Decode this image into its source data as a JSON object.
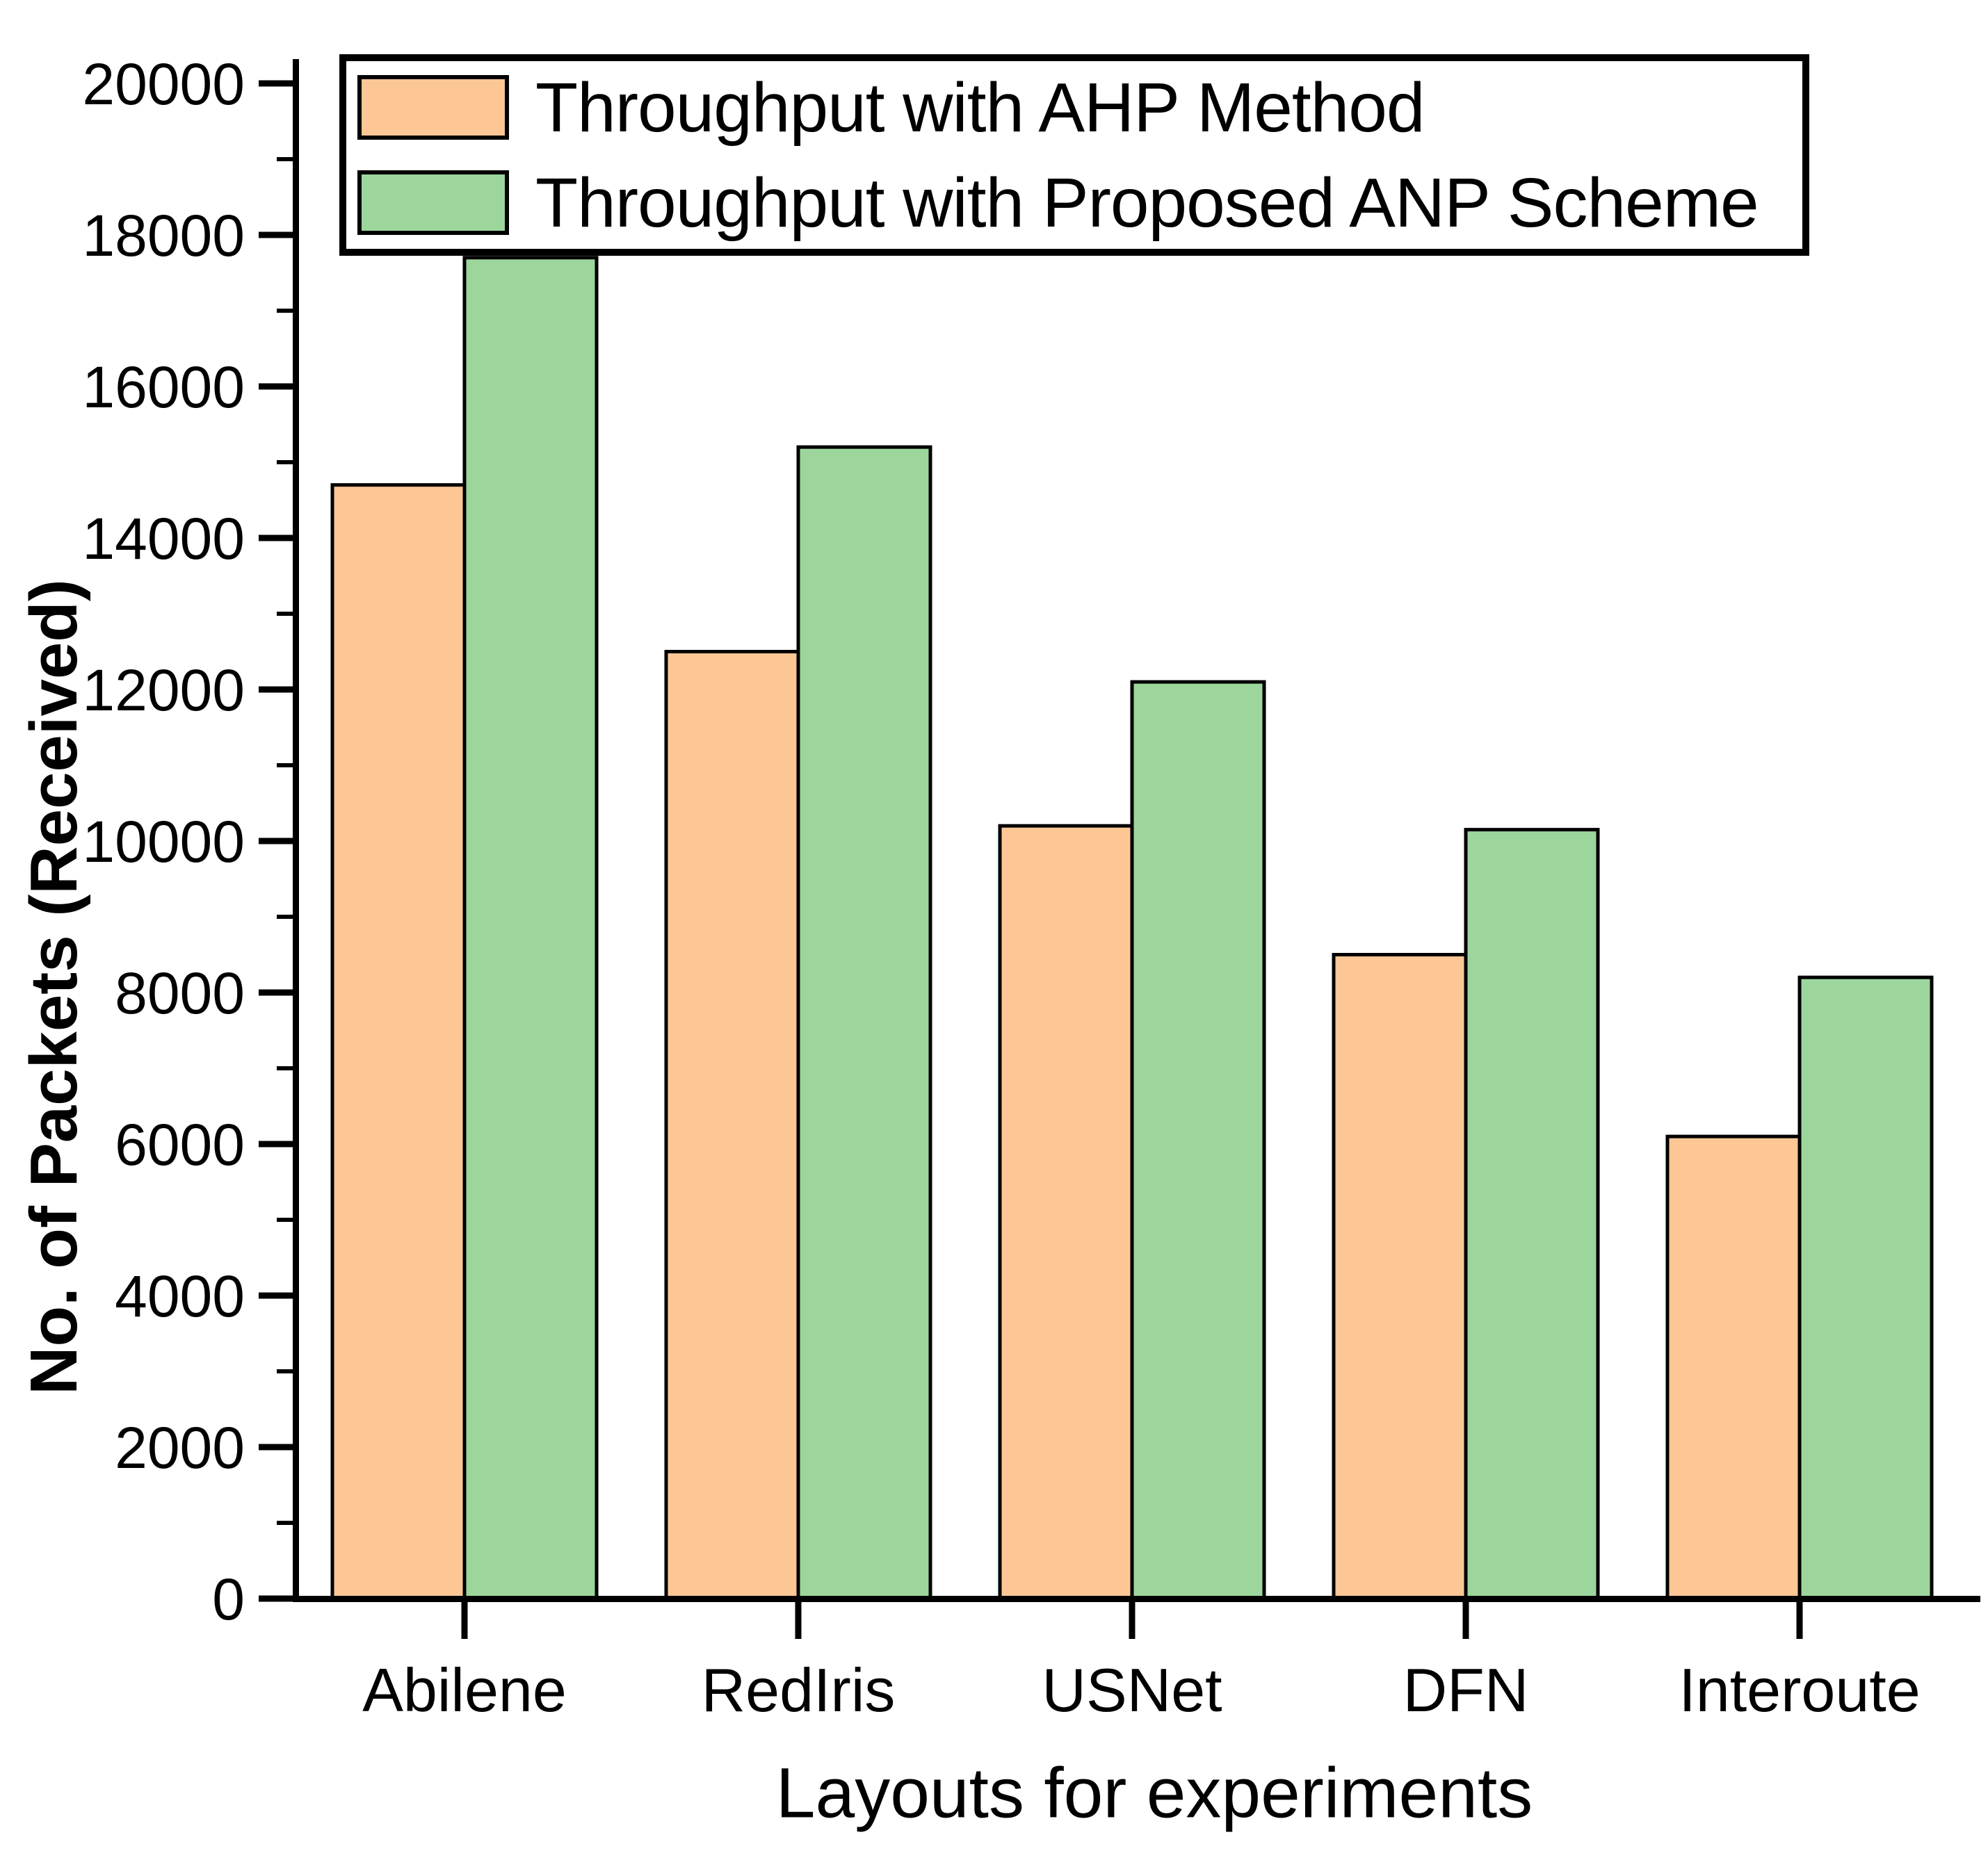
{
  "figure": {
    "background_color": "#FFFFFF",
    "text_color": "#000000",
    "axis_color": "#000000"
  },
  "legend": {
    "items": [
      {
        "label": "Throughput with AHP Method",
        "color": "#FCC795"
      },
      {
        "label": "Throughput with Proposed ANP Scheme",
        "color": "#9DD69D"
      }
    ]
  },
  "axes": {
    "y_title": "No. of Packets (Received)",
    "x_title": "Layouts for experiments"
  },
  "chart_data": {
    "type": "bar",
    "title": "",
    "xlabel": "Layouts for experiments",
    "ylabel": "No. of Packets (Received)",
    "categories": [
      "Abilene",
      "RedIris",
      "USNet",
      "DFN",
      "Interoute"
    ],
    "series": [
      {
        "name": "Throughput with AHP Method",
        "color": "#FCC795",
        "values": [
          14700,
          12500,
          10200,
          8500,
          6100
        ]
      },
      {
        "name": "Throughput with Proposed ANP Scheme",
        "color": "#9DD69D",
        "values": [
          17700,
          15200,
          12100,
          10150,
          8200
        ]
      }
    ],
    "ylim": [
      0,
      20000
    ],
    "ytick_step": 2000,
    "minor_tick_step": 1000,
    "ytick_labels": [
      "0",
      "2000",
      "4000",
      "6000",
      "8000",
      "10000",
      "12000",
      "14000",
      "16000",
      "18000",
      "20000"
    ],
    "bar_edge_color": "#000000",
    "grid": false,
    "legend_position": "top-left"
  }
}
